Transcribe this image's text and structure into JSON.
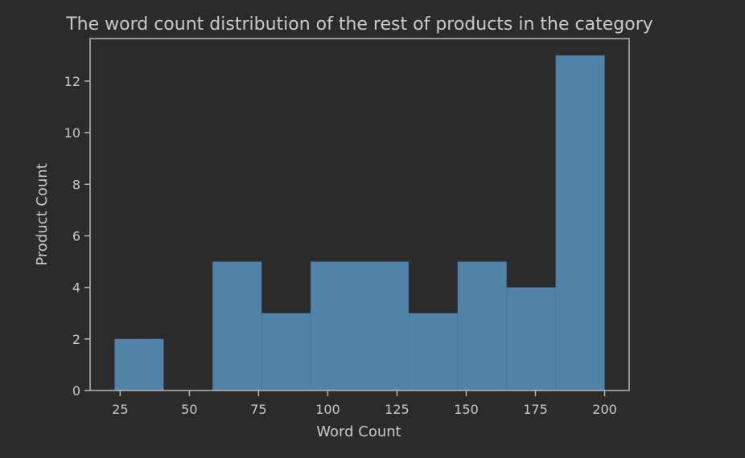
{
  "chart_data": {
    "type": "bar",
    "title": "The word count distribution of the rest of products in the category",
    "xlabel": "Word Count",
    "ylabel": "Product Count",
    "bin_edges": [
      23,
      40.7,
      58.4,
      76.1,
      93.8,
      111.5,
      129.2,
      146.9,
      164.6,
      182.3,
      200
    ],
    "values": [
      2,
      0,
      5,
      3,
      5,
      5,
      3,
      5,
      4,
      13
    ],
    "xlim": [
      14.15,
      208.85
    ],
    "ylim": [
      0,
      13.65
    ],
    "xticks": [
      25,
      50,
      75,
      100,
      125,
      150,
      175,
      200
    ],
    "yticks": [
      0,
      2,
      4,
      6,
      8,
      10,
      12
    ],
    "grid": false,
    "legend": "none",
    "colors": {
      "bar": "#5183a8",
      "background": "#2b2b2b",
      "text": "#c8c8c8",
      "axis": "#b8b8b8"
    }
  }
}
